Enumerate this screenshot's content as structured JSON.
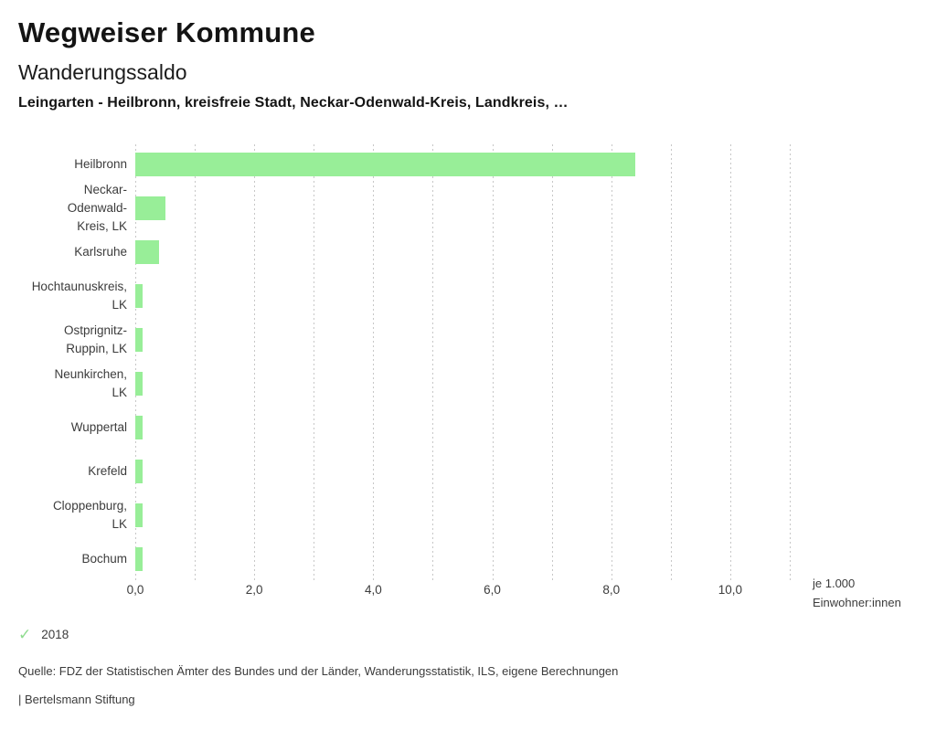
{
  "header": {
    "app_title": "Wegweiser Kommune",
    "chart_title": "Wanderungssaldo",
    "subtitle": "Leingarten - Heilbronn, kreisfreie Stadt, Neckar-Odenwald-Kreis, Landkreis, …"
  },
  "legend": {
    "year": "2018",
    "check_icon": "✓",
    "check_color": "#8fdc8f"
  },
  "axis": {
    "unit_line1": "je 1.000",
    "unit_line2": "Einwohner:innen"
  },
  "footer": {
    "source": "Quelle: FDZ der Statistischen Ämter des Bundes und der Länder, Wanderungsstatistik, ILS, eigene Berechnungen",
    "brand": "| Bertelsmann Stiftung"
  },
  "colors": {
    "bar": "#98ee98",
    "gridline": "#c7c7c7"
  },
  "chart_data": {
    "type": "bar",
    "orientation": "horizontal",
    "title": "Wanderungssaldo",
    "xlabel": "je 1.000 Einwohner:innen",
    "categories": [
      "Heilbronn",
      "Neckar-Odenwald-Kreis, LK",
      "Karlsruhe",
      "Hochtaunuskreis, LK",
      "Ostprignitz-Ruppin, LK",
      "Neunkirchen, LK",
      "Wuppertal",
      "Krefeld",
      "Cloppenburg, LK",
      "Bochum"
    ],
    "category_label_lines": [
      [
        "Heilbronn"
      ],
      [
        "Neckar-",
        "Odenwald-",
        "Kreis, LK"
      ],
      [
        "Karlsruhe"
      ],
      [
        "Hochtaunuskreis,",
        "LK"
      ],
      [
        "Ostprignitz-",
        "Ruppin, LK"
      ],
      [
        "Neunkirchen,",
        "LK"
      ],
      [
        "Wuppertal"
      ],
      [
        "Krefeld"
      ],
      [
        "Cloppenburg,",
        "LK"
      ],
      [
        "Bochum"
      ]
    ],
    "series": [
      {
        "name": "2018",
        "values": [
          8.4,
          0.5,
          0.4,
          0.13,
          0.13,
          0.13,
          0.13,
          0.13,
          0.13,
          0.13
        ]
      }
    ],
    "xlim": [
      0,
      11
    ],
    "gridline_step": 1,
    "tick_values": [
      0,
      2,
      4,
      6,
      8,
      10
    ],
    "tick_labels": [
      "0,0",
      "2,0",
      "4,0",
      "6,0",
      "8,0",
      "10,0"
    ],
    "grid": true,
    "legend_position": "bottom-left"
  }
}
